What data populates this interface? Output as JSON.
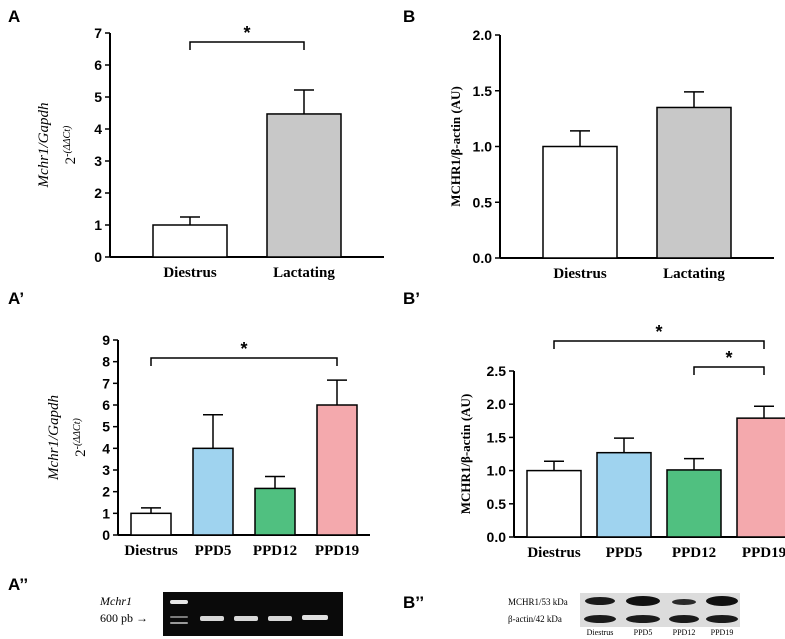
{
  "chart_data": [
    {
      "panel": "A",
      "type": "bar",
      "ylabel": "Mchr1/Gapdh",
      "ylabel2": "2",
      "ylabel_sup": "-(ΔΔCt)",
      "ylim": [
        0,
        7
      ],
      "yticks": [
        0,
        1,
        2,
        3,
        4,
        5,
        6,
        7
      ],
      "categories": [
        "Diestrus",
        "Lactating"
      ],
      "values": [
        1.0,
        4.47
      ],
      "errors": [
        0.25,
        0.75
      ],
      "colors": [
        "#ffffff",
        "#c8c8c8"
      ],
      "significance": [
        {
          "from": 0,
          "to": 1,
          "label": "*"
        }
      ]
    },
    {
      "panel": "B",
      "type": "bar",
      "ylabel": "MCHR1/β-actin (AU)",
      "ylim": [
        0,
        2.0
      ],
      "yticks": [
        "0.0",
        "0.5",
        "1.0",
        "1.5",
        "2.0"
      ],
      "categories": [
        "Diestrus",
        "Lactating"
      ],
      "values": [
        1.0,
        1.35
      ],
      "errors": [
        0.14,
        0.14
      ],
      "colors": [
        "#ffffff",
        "#c8c8c8"
      ],
      "significance": []
    },
    {
      "panel": "A’",
      "type": "bar",
      "ylabel": "Mchr1/Gapdh",
      "ylabel2": "2",
      "ylabel_sup": "-(ΔΔCt)",
      "ylim": [
        0,
        9
      ],
      "yticks": [
        0,
        1,
        2,
        3,
        4,
        5,
        6,
        7,
        8,
        9
      ],
      "categories": [
        "Diestrus",
        "PPD5",
        "PPD12",
        "PPD19"
      ],
      "values": [
        1.0,
        4.0,
        2.15,
        6.0
      ],
      "errors": [
        0.25,
        1.55,
        0.55,
        1.15
      ],
      "colors": [
        "#ffffff",
        "#9fd3ef",
        "#50c080",
        "#f4a9ad"
      ],
      "significance": [
        {
          "from": 0,
          "to": 3,
          "label": "*"
        }
      ]
    },
    {
      "panel": "B’",
      "type": "bar",
      "ylabel": "MCHR1/β-actin (AU)",
      "ylim": [
        0,
        2.5
      ],
      "yticks": [
        "0.0",
        "0.5",
        "1.0",
        "1.5",
        "2.0",
        "2.5"
      ],
      "categories": [
        "Diestrus",
        "PPD5",
        "PPD12",
        "PPD19"
      ],
      "values": [
        1.0,
        1.27,
        1.01,
        1.79
      ],
      "errors": [
        0.14,
        0.22,
        0.17,
        0.18
      ],
      "colors": [
        "#ffffff",
        "#9fd3ef",
        "#50c080",
        "#f4a9ad"
      ],
      "significance": [
        {
          "from": 0,
          "to": 3,
          "label": "*"
        },
        {
          "from": 2,
          "to": 3,
          "label": "*"
        }
      ]
    }
  ],
  "panels": {
    "a": "A",
    "b": "B",
    "a2": "A’",
    "b2": "B’",
    "a3": "A’’",
    "b3": "B’’"
  },
  "gel": {
    "gene_label": "Mchr1",
    "size_label": "600 pb →"
  },
  "western": {
    "band1_label": "MCHR1/53 kDa",
    "band2_label": "β-actin/42 kDa",
    "lanes": [
      "Diestrus",
      "PPD5",
      "PPD12",
      "PPD19"
    ]
  }
}
